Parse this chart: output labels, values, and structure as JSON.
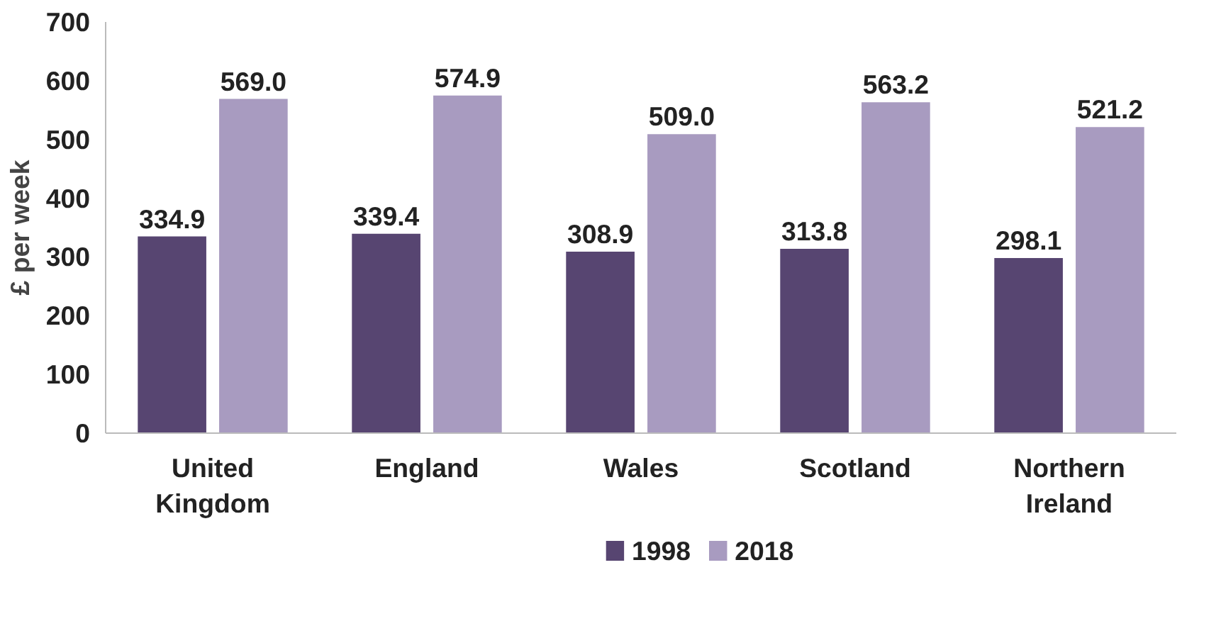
{
  "chart_data": {
    "type": "bar",
    "ylabel": "£ per week",
    "categories": [
      "United Kingdom",
      "England",
      "Wales",
      "Scotland",
      "Northern Ireland"
    ],
    "series": [
      {
        "name": "1998",
        "color": "#574571",
        "values": [
          334.9,
          339.4,
          308.9,
          313.8,
          298.1
        ],
        "value_labels": [
          "334.9",
          "339.4",
          "308.9",
          "313.8",
          "298.1"
        ]
      },
      {
        "name": "2018",
        "color": "#a89bc0",
        "values": [
          569.0,
          574.9,
          509.0,
          563.2,
          521.2
        ],
        "value_labels": [
          "569.0",
          "574.9",
          "509.0",
          "563.2",
          "521.2"
        ]
      }
    ],
    "ylim": [
      0,
      700
    ],
    "yticks": [
      0,
      100,
      200,
      300,
      400,
      500,
      600,
      700
    ],
    "grid": false,
    "data_labels": true,
    "legend": "bottom"
  }
}
